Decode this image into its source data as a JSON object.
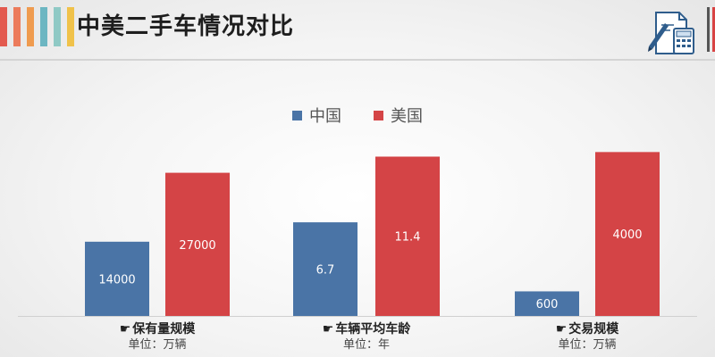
{
  "title": "中美二手车情况对比",
  "colors": {
    "china": "#4a74a6",
    "usa": "#d44446",
    "stripes": [
      "#e35a4f",
      "#ec7b5b",
      "#ef9b4f",
      "#6cb6c2",
      "#8fc9c5",
      "#f0c24a"
    ]
  },
  "icons": {
    "header": "document-calculator-pen-icon",
    "category": "hand-pointing-icon"
  },
  "category_glyph": "☛",
  "chart_data": {
    "type": "bar",
    "legend": {
      "position": "top-center",
      "entries": [
        "中国",
        "美国"
      ]
    },
    "series_names": [
      "中国",
      "美国"
    ],
    "groups": [
      {
        "name": "保有量规模",
        "unit": "单位：万辆",
        "values": [
          14000,
          27000
        ],
        "labels": [
          "14000",
          "27000"
        ],
        "ylim": [
          0,
          34000
        ]
      },
      {
        "name": "车辆平均车龄",
        "unit": "单位：年",
        "values": [
          6.7,
          11.4
        ],
        "labels": [
          "6.7",
          "11.4"
        ],
        "ylim": [
          0,
          12.9
        ]
      },
      {
        "name": "交易规模",
        "unit": "单位：万辆",
        "values": [
          600,
          4000
        ],
        "labels": [
          "600",
          "4000"
        ],
        "ylim": [
          0,
          4400
        ]
      }
    ]
  }
}
